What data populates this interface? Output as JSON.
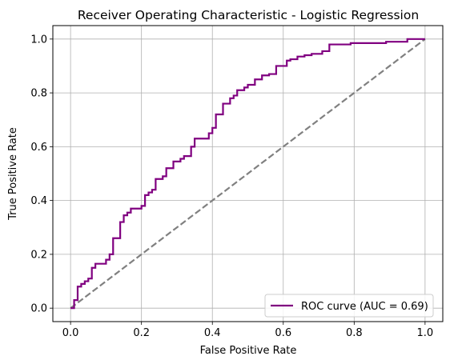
{
  "chart_data": {
    "type": "line",
    "title": "Receiver Operating Characteristic - Logistic Regression",
    "xlabel": "False Positive Rate",
    "ylabel": "True Positive Rate",
    "xlim": [
      -0.05,
      1.05
    ],
    "ylim": [
      -0.05,
      1.05
    ],
    "xticks": [
      0.0,
      0.2,
      0.4,
      0.6,
      0.8,
      1.0
    ],
    "yticks": [
      0.0,
      0.2,
      0.4,
      0.6,
      0.8,
      1.0
    ],
    "xtick_labels": [
      "0.0",
      "0.2",
      "0.4",
      "0.6",
      "0.8",
      "1.0"
    ],
    "ytick_labels": [
      "0.0",
      "0.2",
      "0.4",
      "0.6",
      "0.8",
      "1.0"
    ],
    "grid": true,
    "legend_position": "lower-right",
    "series": [
      {
        "name": "ROC curve (AUC = 0.69)",
        "color": "#800080",
        "style": "solid",
        "x": [
          0.0,
          0.01,
          0.01,
          0.02,
          0.02,
          0.03,
          0.03,
          0.04,
          0.04,
          0.05,
          0.05,
          0.06,
          0.06,
          0.07,
          0.07,
          0.1,
          0.1,
          0.11,
          0.11,
          0.12,
          0.12,
          0.14,
          0.14,
          0.15,
          0.15,
          0.16,
          0.16,
          0.17,
          0.17,
          0.2,
          0.2,
          0.21,
          0.21,
          0.22,
          0.22,
          0.23,
          0.23,
          0.24,
          0.24,
          0.26,
          0.26,
          0.27,
          0.27,
          0.29,
          0.29,
          0.31,
          0.31,
          0.32,
          0.32,
          0.34,
          0.34,
          0.35,
          0.35,
          0.36,
          0.36,
          0.39,
          0.39,
          0.4,
          0.4,
          0.41,
          0.41,
          0.43,
          0.43,
          0.45,
          0.45,
          0.46,
          0.46,
          0.47,
          0.47,
          0.49,
          0.49,
          0.5,
          0.5,
          0.52,
          0.52,
          0.54,
          0.54,
          0.56,
          0.56,
          0.58,
          0.58,
          0.61,
          0.61,
          0.62,
          0.62,
          0.64,
          0.64,
          0.66,
          0.66,
          0.68,
          0.68,
          0.71,
          0.71,
          0.73,
          0.73,
          0.79,
          0.79,
          0.89,
          0.89,
          0.95,
          0.95,
          1.0
        ],
        "y": [
          0.0,
          0.0,
          0.03,
          0.03,
          0.08,
          0.08,
          0.09,
          0.09,
          0.1,
          0.1,
          0.11,
          0.11,
          0.15,
          0.15,
          0.165,
          0.165,
          0.18,
          0.18,
          0.2,
          0.2,
          0.26,
          0.26,
          0.32,
          0.32,
          0.345,
          0.345,
          0.355,
          0.355,
          0.37,
          0.37,
          0.38,
          0.38,
          0.42,
          0.42,
          0.43,
          0.43,
          0.44,
          0.44,
          0.48,
          0.48,
          0.49,
          0.49,
          0.52,
          0.52,
          0.545,
          0.545,
          0.555,
          0.555,
          0.565,
          0.565,
          0.6,
          0.6,
          0.63,
          0.63,
          0.63,
          0.63,
          0.65,
          0.65,
          0.67,
          0.67,
          0.72,
          0.72,
          0.76,
          0.76,
          0.78,
          0.78,
          0.79,
          0.79,
          0.81,
          0.81,
          0.82,
          0.82,
          0.83,
          0.83,
          0.85,
          0.85,
          0.865,
          0.865,
          0.87,
          0.87,
          0.9,
          0.9,
          0.92,
          0.92,
          0.925,
          0.925,
          0.935,
          0.935,
          0.94,
          0.94,
          0.945,
          0.945,
          0.955,
          0.955,
          0.98,
          0.98,
          0.985,
          0.985,
          0.99,
          0.99,
          1.0,
          1.0
        ]
      },
      {
        "name": "",
        "color": "#808080",
        "style": "dashed",
        "x": [
          0.0,
          1.0
        ],
        "y": [
          0.0,
          1.0
        ]
      }
    ]
  }
}
